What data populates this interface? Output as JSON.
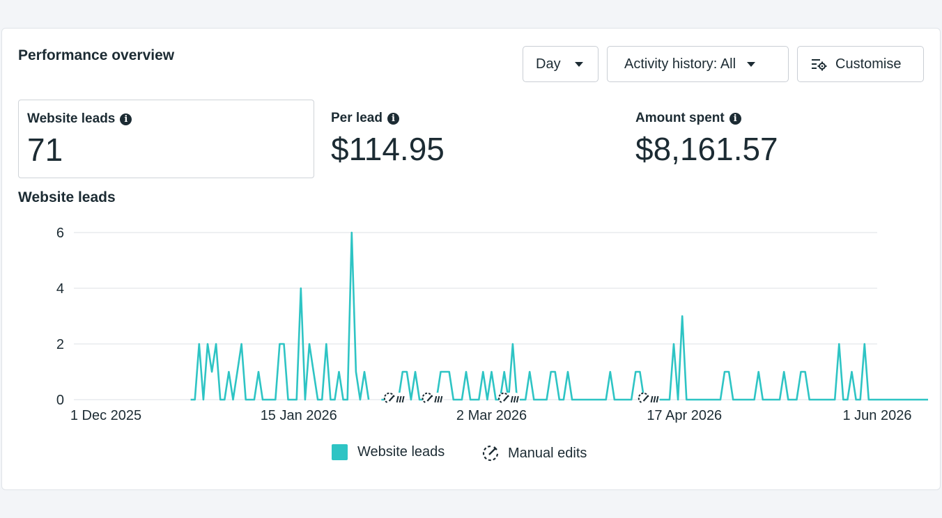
{
  "panel": {
    "title": "Performance overview",
    "day_button": "Day",
    "activity_button": "Activity history: All",
    "customise_button": "Customise"
  },
  "metrics": {
    "leads": {
      "label": "Website leads",
      "value": "71"
    },
    "per_lead": {
      "label": "Per lead",
      "value": "$114.95"
    },
    "spent": {
      "label": "Amount spent",
      "value": "$8,161.57"
    }
  },
  "chart_title": "Website leads",
  "legend": {
    "series": "Website leads",
    "edits": "Manual edits"
  },
  "colors": {
    "series": "#2ec4c4",
    "grid": "#e3e6ea",
    "text": "#1c2b33"
  },
  "icons": {
    "info": "info-icon",
    "caret": "caret-down-icon",
    "customise": "customise-icon",
    "edit": "manual-edit-icon"
  },
  "chart_data": {
    "type": "line",
    "ylim": [
      0,
      6
    ],
    "y_ticks": [
      0,
      2,
      4,
      6
    ],
    "x_ticks": [
      "1 Dec 2025",
      "15 Jan 2026",
      "2 Mar 2026",
      "17 Apr 2026",
      "1 Jun 2026"
    ],
    "x_start": "1 Dec 2025",
    "x_end": "1 Jun 2026",
    "series": [
      {
        "name": "Website leads",
        "segments": [
          {
            "start_day": 20,
            "values": [
              0,
              0,
              2,
              0,
              2,
              1,
              2,
              0,
              0,
              1,
              0,
              1,
              2,
              0,
              0,
              0,
              1,
              0,
              0,
              0,
              0,
              2,
              2,
              0,
              0,
              0,
              4,
              0,
              2,
              1,
              0,
              0,
              2,
              0,
              0,
              1,
              0,
              0,
              6,
              1,
              0,
              1,
              0
            ]
          },
          {
            "start_day": 65,
            "values": [
              0,
              0,
              0,
              0,
              0,
              1,
              1,
              0,
              1,
              0,
              0,
              0,
              0,
              0,
              1,
              1,
              1,
              0,
              0,
              0,
              1,
              0,
              0,
              0,
              1,
              0,
              1,
              0,
              0,
              1,
              0,
              2,
              0,
              0,
              0,
              1,
              0,
              0,
              0,
              0,
              1,
              1,
              0,
              0,
              1,
              0,
              0,
              0,
              0,
              0,
              0,
              0,
              0,
              0,
              1,
              0,
              0,
              0,
              0,
              0,
              1,
              1,
              0,
              0,
              0,
              0,
              0,
              0,
              0,
              2,
              0,
              3,
              0,
              0,
              0,
              0,
              0,
              0,
              0,
              0,
              0,
              1,
              1,
              0,
              0,
              0,
              0,
              0,
              0,
              1,
              0,
              0,
              0,
              0,
              0,
              1,
              0,
              0,
              0,
              1,
              1,
              0,
              0,
              0,
              0,
              0,
              0,
              0,
              2,
              0,
              0,
              1,
              0,
              0,
              2,
              0,
              0,
              0,
              0,
              0,
              0,
              0,
              0,
              0,
              0,
              0,
              0,
              0,
              0,
              0
            ]
          }
        ]
      }
    ],
    "manual_edit_days": [
      68,
      77,
      95,
      128
    ],
    "legend_position": "bottom-center",
    "grid": true
  }
}
